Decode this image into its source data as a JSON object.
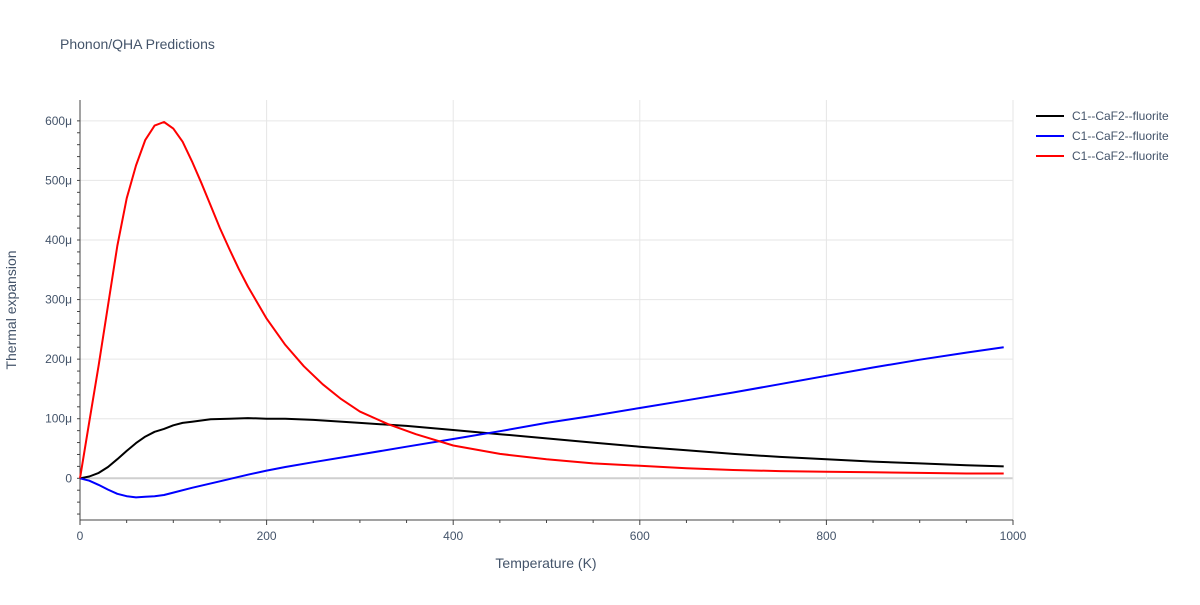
{
  "chart_data": {
    "type": "line",
    "title": "Phonon/QHA Predictions",
    "xlabel": "Temperature (K)",
    "ylabel": "Thermal expansion",
    "xlim": [
      0,
      1000
    ],
    "ylim": [
      -7e-05,
      0.000635
    ],
    "x_ticks": [
      {
        "value": 0,
        "label": "0"
      },
      {
        "value": 200,
        "label": "200"
      },
      {
        "value": 400,
        "label": "400"
      },
      {
        "value": 600,
        "label": "600"
      },
      {
        "value": 800,
        "label": "800"
      },
      {
        "value": 1000,
        "label": "1000"
      }
    ],
    "y_ticks": [
      {
        "value": 0,
        "label": "0"
      },
      {
        "value": 0.0001,
        "label": "100μ"
      },
      {
        "value": 0.0002,
        "label": "200μ"
      },
      {
        "value": 0.0003,
        "label": "300μ"
      },
      {
        "value": 0.0004,
        "label": "400μ"
      },
      {
        "value": 0.0005,
        "label": "500μ"
      },
      {
        "value": 0.0006,
        "label": "600μ"
      }
    ],
    "grid": true,
    "legend_position": "top-right",
    "series": [
      {
        "name": "C1--CaF2--fluorite",
        "color": "#000000",
        "x": [
          0,
          10,
          20,
          30,
          40,
          50,
          60,
          70,
          80,
          90,
          100,
          110,
          120,
          140,
          160,
          180,
          200,
          220,
          250,
          300,
          350,
          400,
          450,
          500,
          550,
          600,
          650,
          700,
          750,
          800,
          850,
          900,
          950,
          990
        ],
        "y": [
          0,
          3e-06,
          9e-06,
          1.9e-05,
          3.2e-05,
          4.6e-05,
          5.9e-05,
          7e-05,
          7.8e-05,
          8.3e-05,
          8.9e-05,
          9.3e-05,
          9.5e-05,
          9.9e-05,
          0.0001,
          0.000101,
          0.0001,
          0.0001,
          9.8e-05,
          9.3e-05,
          8.8e-05,
          8.1e-05,
          7.4e-05,
          6.7e-05,
          6e-05,
          5.3e-05,
          4.7e-05,
          4.1e-05,
          3.6e-05,
          3.2e-05,
          2.8e-05,
          2.5e-05,
          2.2e-05,
          2e-05
        ]
      },
      {
        "name": "C1--CaF2--fluorite",
        "color": "#0000ff",
        "x": [
          0,
          10,
          20,
          30,
          40,
          50,
          60,
          70,
          80,
          90,
          100,
          120,
          150,
          180,
          200,
          220,
          250,
          300,
          350,
          400,
          450,
          500,
          550,
          600,
          650,
          700,
          750,
          800,
          850,
          900,
          950,
          990
        ],
        "y": [
          0,
          -4e-06,
          -1.1e-05,
          -1.9e-05,
          -2.6e-05,
          -3e-05,
          -3.2e-05,
          -3.1e-05,
          -3e-05,
          -2.8e-05,
          -2.4e-05,
          -1.6e-05,
          -5e-06,
          6e-06,
          1.3e-05,
          1.9e-05,
          2.7e-05,
          4e-05,
          5.3e-05,
          6.6e-05,
          7.9e-05,
          9.3e-05,
          0.000105,
          0.000118,
          0.000131,
          0.000144,
          0.000158,
          0.000172,
          0.000186,
          0.000199,
          0.000211,
          0.00022
        ]
      },
      {
        "name": "C1--CaF2--fluorite",
        "color": "#ff0000",
        "x": [
          0,
          10,
          20,
          30,
          40,
          50,
          60,
          70,
          80,
          90,
          100,
          110,
          120,
          130,
          140,
          150,
          160,
          170,
          180,
          200,
          220,
          240,
          260,
          280,
          300,
          330,
          360,
          400,
          450,
          500,
          550,
          600,
          650,
          700,
          750,
          800,
          850,
          900,
          950,
          990
        ],
        "y": [
          0,
          9.5e-05,
          0.00019,
          0.00029,
          0.00039,
          0.00047,
          0.000525,
          0.000568,
          0.000592,
          0.000598,
          0.000587,
          0.000565,
          0.000532,
          0.000496,
          0.000458,
          0.00042,
          0.000385,
          0.000352,
          0.000322,
          0.000268,
          0.000224,
          0.000188,
          0.000158,
          0.000133,
          0.000112,
          9.1e-05,
          7.4e-05,
          5.5e-05,
          4.1e-05,
          3.2e-05,
          2.5e-05,
          2.1e-05,
          1.7e-05,
          1.4e-05,
          1.2e-05,
          1.1e-05,
          1e-05,
          9e-06,
          8e-06,
          8e-06
        ]
      }
    ]
  }
}
